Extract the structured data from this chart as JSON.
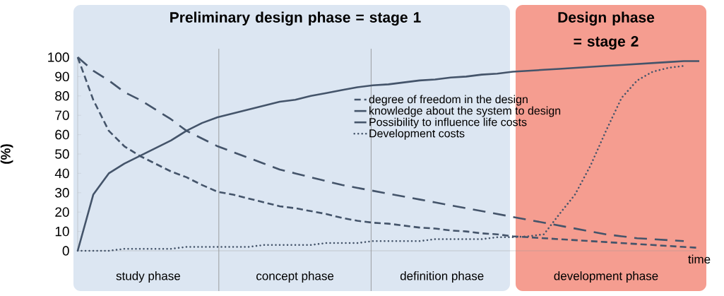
{
  "chart_data": {
    "type": "line",
    "xlabel": "time",
    "ylabel": "(%)",
    "categories": [
      null,
      null,
      null,
      null,
      null,
      null,
      null,
      null,
      null,
      null,
      null,
      null,
      null,
      null,
      null,
      null,
      null,
      null,
      null,
      null,
      null,
      null,
      null,
      null,
      null,
      null,
      null,
      null,
      null,
      null,
      null,
      null,
      null,
      null,
      null,
      null,
      null,
      null,
      null,
      null,
      null
    ],
    "ylim": [
      0,
      100
    ],
    "yticks": [
      0,
      10,
      20,
      30,
      40,
      50,
      60,
      70,
      80,
      90,
      100
    ],
    "tick_labels": "y",
    "grid": false,
    "legend": "right",
    "marker": "none",
    "series": [
      {
        "name": "degree of freedom in the design",
        "color": "#44546a",
        "line_style": "dashed",
        "values": [
          100,
          78,
          62,
          54,
          49,
          45,
          41,
          38,
          34,
          30.5,
          29,
          27,
          25,
          23,
          22,
          20.5,
          19,
          17,
          15.5,
          14.5,
          14,
          13,
          12,
          11.5,
          10.5,
          10,
          9,
          8.5,
          7.5,
          7,
          6.5,
          6,
          5.5,
          5,
          4.5,
          4,
          3.5,
          3,
          2.5,
          2,
          1.5
        ]
      },
      {
        "name": "knowledge about the system to design",
        "color": "#44546a",
        "line_style": "solid",
        "values": [
          0,
          29,
          40,
          45,
          49,
          53,
          57,
          62,
          66,
          69,
          71,
          73,
          75,
          77,
          78,
          80,
          81.5,
          83,
          84.5,
          85.5,
          86,
          87,
          88,
          88.5,
          89.5,
          90,
          91,
          91.5,
          92.5,
          93,
          93.5,
          94,
          94.5,
          95,
          95.5,
          96,
          96.5,
          97,
          97.5,
          98,
          98
        ]
      },
      {
        "name": "Possibility to influence life costs",
        "color": "#44546a",
        "line_style": "dashed",
        "values": [
          100,
          93,
          88,
          82,
          78,
          73,
          68,
          62,
          58,
          54,
          51,
          48,
          45,
          42,
          40,
          38,
          36,
          34,
          32.5,
          31,
          29.5,
          28,
          26.5,
          25,
          23.5,
          22,
          20.5,
          19,
          17.5,
          16,
          14.5,
          13,
          11.5,
          10,
          8.5,
          7.5,
          6.5,
          6,
          5.5,
          5,
          null
        ]
      },
      {
        "name": "Development costs",
        "color": "#44546a",
        "line_style": "dotted",
        "values": [
          0,
          0,
          0,
          1,
          1,
          1,
          1,
          2,
          2,
          2,
          2,
          2,
          3,
          3,
          3,
          3,
          4,
          4,
          4,
          5,
          5,
          5,
          5,
          6,
          6,
          6,
          6,
          7,
          7,
          7.5,
          8.5,
          19,
          29,
          44,
          62,
          79,
          88,
          92.5,
          94.5,
          95.5,
          null
        ]
      }
    ],
    "annotations": [
      "Preliminary design phase = stage 1",
      "Design phase = stage 2",
      "study phase",
      "concept phase",
      "definition phase",
      "development phase"
    ]
  }
}
